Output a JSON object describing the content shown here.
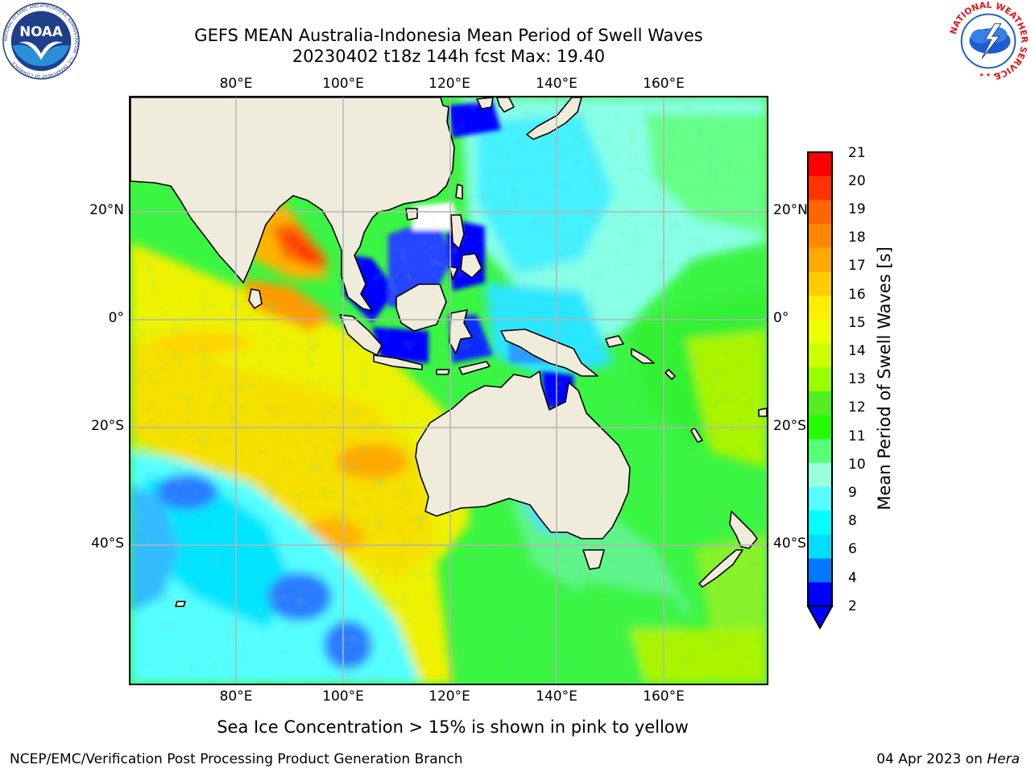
{
  "header": {
    "title": "GEFS MEAN Australia-Indonesia Mean Period of Swell Waves",
    "subtitle": "20230402 t18z 144h fcst   Max: 19.40"
  },
  "logos": {
    "noaa_text": "NOAA",
    "noaa_ring": "NATIONAL OCEANIC AND ATMOSPHERIC ADMINISTRATION · U.S. DEPARTMENT OF COMMERCE",
    "nws_ring": "NATIONAL WEATHER SERVICE"
  },
  "map": {
    "region": "Australia-Indonesia",
    "lon_labels": [
      "80°E",
      "100°E",
      "120°E",
      "140°E",
      "160°E"
    ],
    "lat_labels": [
      "20°N",
      "0°",
      "20°S",
      "40°S"
    ],
    "land_color": "#efecdc",
    "grid_color": "#b4b4b4"
  },
  "colorbar": {
    "label": "Mean Period of Swell Waves [s]",
    "ticks": [
      "21",
      "20",
      "19",
      "18",
      "17",
      "16",
      "15",
      "14",
      "13",
      "12",
      "11",
      "10",
      "9",
      "8",
      "6",
      "4",
      "2"
    ],
    "colors": [
      "#ff0000",
      "#ff3300",
      "#ff6600",
      "#ff8800",
      "#ffaa00",
      "#ffcc00",
      "#ffee00",
      "#eeff00",
      "#ccff00",
      "#99ff00",
      "#55ee22",
      "#22ff00",
      "#55ff77",
      "#99ffdd",
      "#55ffff",
      "#00ffff",
      "#00ddff",
      "#0077ff",
      "#0000ff"
    ],
    "underflow_color": "#0000ff"
  },
  "footer": {
    "ice_note": "Sea Ice Concentration > 15% is shown in pink to yellow",
    "credit": "NCEP/EMC/Verification Post Processing Product Generation Branch",
    "date": "04 Apr 2023 on",
    "host": "Hera"
  }
}
